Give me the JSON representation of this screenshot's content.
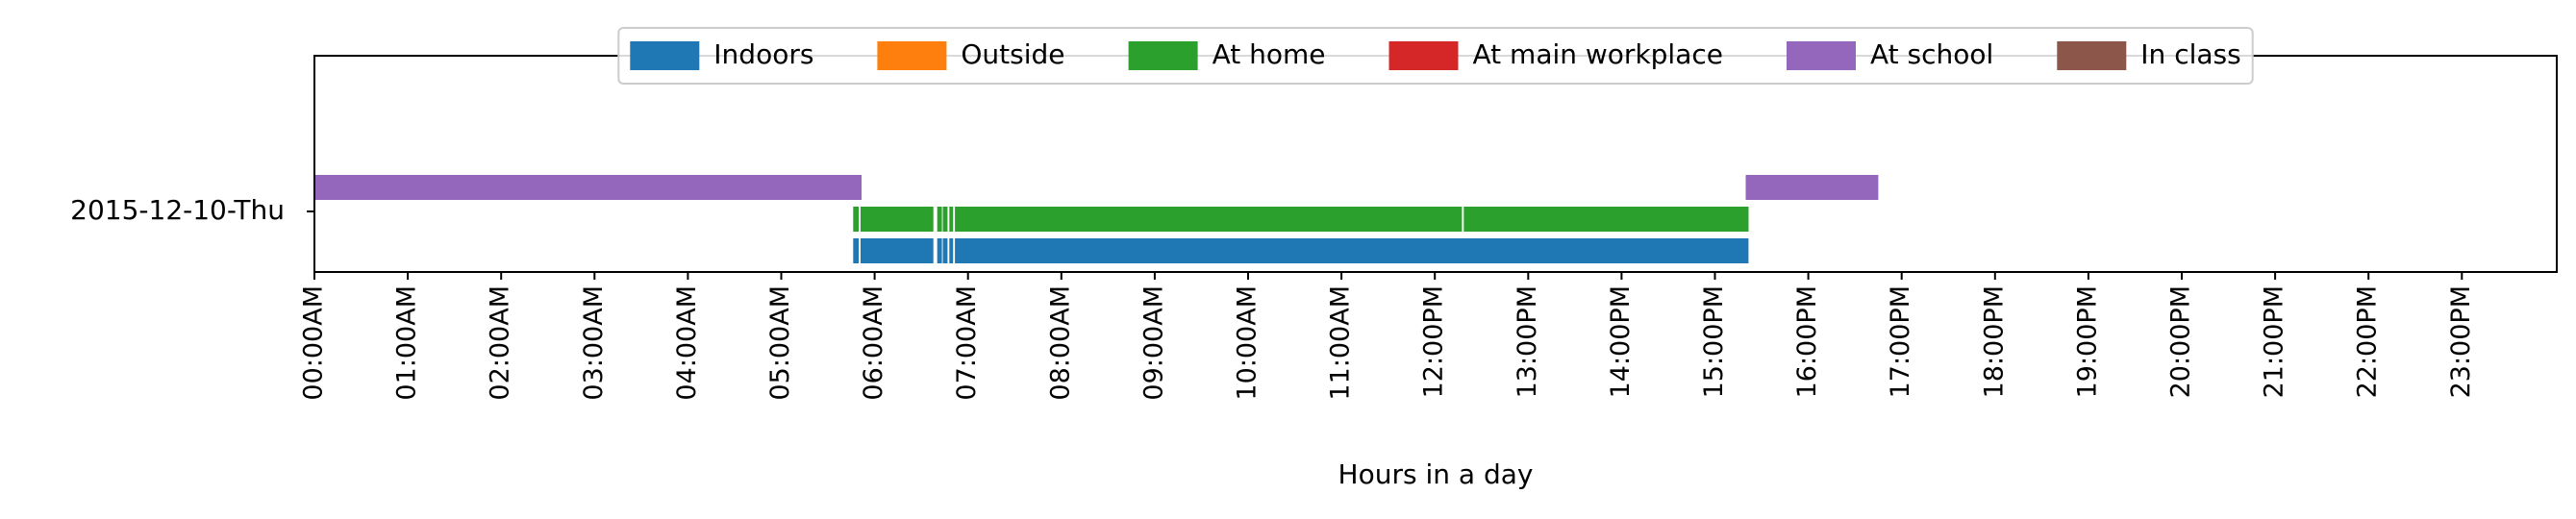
{
  "chart_data": {
    "type": "timeline",
    "title": "",
    "xlabel": "Hours in a day",
    "ylabel": "",
    "xlim": [
      0,
      24
    ],
    "row_label": "2015-12-10-Thu",
    "x_tick_labels": [
      "00:00AM",
      "01:00AM",
      "02:00AM",
      "03:00AM",
      "04:00AM",
      "05:00AM",
      "06:00AM",
      "07:00AM",
      "08:00AM",
      "09:00AM",
      "10:00AM",
      "11:00AM",
      "12:00PM",
      "13:00PM",
      "14:00PM",
      "15:00PM",
      "16:00PM",
      "17:00PM",
      "18:00PM",
      "19:00PM",
      "20:00PM",
      "21:00PM",
      "22:00PM",
      "23:00PM"
    ],
    "legend_position": "top-center",
    "series": [
      {
        "name": "Indoors",
        "color": "#1f77b4",
        "lane": 0,
        "intervals": [
          [
            5.77,
            5.83
          ],
          [
            5.85,
            6.63
          ],
          [
            6.67,
            6.72
          ],
          [
            6.73,
            6.78
          ],
          [
            6.8,
            6.84
          ],
          [
            6.86,
            15.36
          ]
        ]
      },
      {
        "name": "Outside",
        "color": "#ff7f0e",
        "lane": 1,
        "intervals": []
      },
      {
        "name": "At home",
        "color": "#2ca02c",
        "lane": 1,
        "intervals": [
          [
            5.77,
            5.83
          ],
          [
            5.85,
            6.63
          ],
          [
            6.67,
            6.72
          ],
          [
            6.73,
            6.78
          ],
          [
            6.8,
            6.84
          ],
          [
            6.86,
            12.29
          ],
          [
            12.31,
            15.36
          ]
        ]
      },
      {
        "name": "At main workplace",
        "color": "#d62728",
        "lane": 2,
        "intervals": []
      },
      {
        "name": "At school",
        "color": "#9467bd",
        "lane": 2,
        "intervals": [
          [
            0.0,
            5.86
          ],
          [
            15.33,
            16.75
          ]
        ]
      },
      {
        "name": "In class",
        "color": "#8c564b",
        "lane": 2,
        "intervals": []
      }
    ]
  }
}
